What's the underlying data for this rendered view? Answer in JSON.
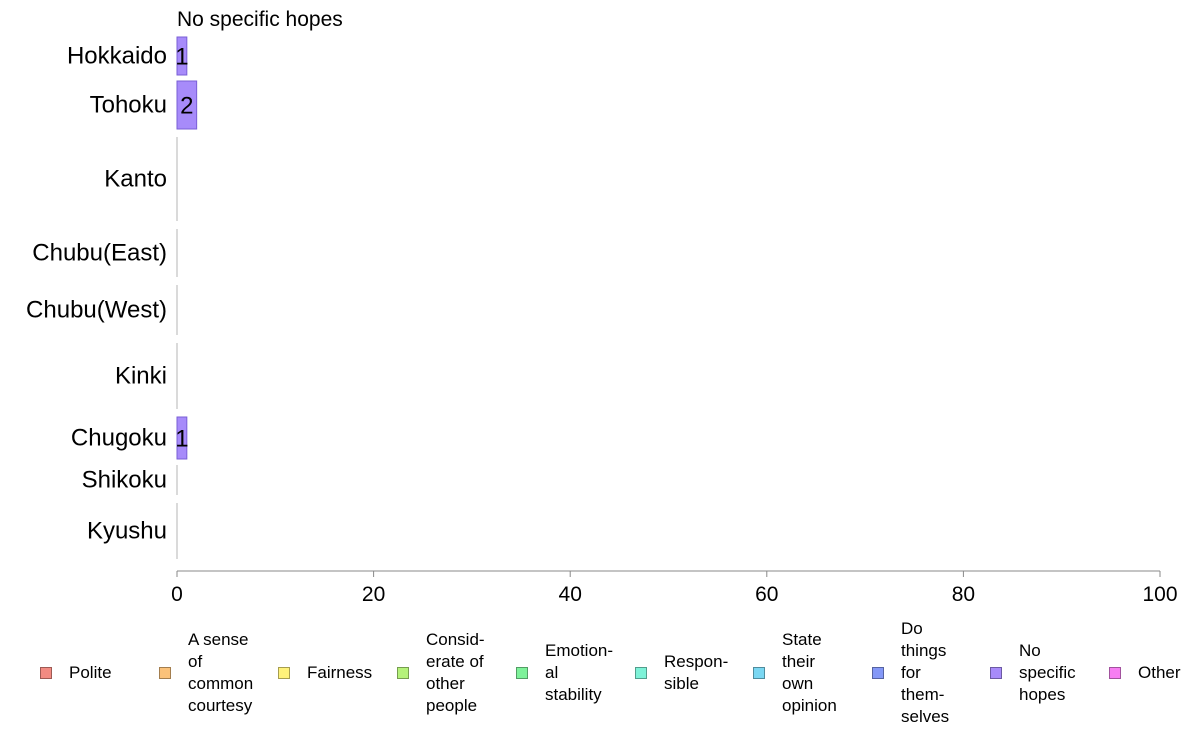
{
  "chart_data": {
    "type": "bar",
    "title": "No specific hopes",
    "categories": [
      "Hokkaido",
      "Tohoku",
      "Kanto",
      "Chubu(East)",
      "Chubu(West)",
      "Kinki",
      "Chugoku",
      "Shikoku",
      "Kyushu"
    ],
    "series": [
      {
        "name": "No specific hopes",
        "values": [
          1,
          2,
          0,
          0,
          0,
          0,
          1,
          0,
          0
        ],
        "color": "#a78bfa"
      }
    ],
    "data_labels": [
      "1",
      "2",
      "",
      "",
      "",
      "",
      "1",
      "",
      ""
    ],
    "x_ticks": [
      "0",
      "20",
      "40",
      "60",
      "80",
      "100"
    ],
    "xlim": [
      0,
      100
    ],
    "grid": false,
    "legend_position": "bottom"
  },
  "legend": [
    {
      "label": "Polite",
      "color": "#f28b82"
    },
    {
      "label": "A sense\nof\ncommon\ncourtesy",
      "color": "#fbc27a"
    },
    {
      "label": "Fairness",
      "color": "#fff27a"
    },
    {
      "label": "Consid-\nerate of\nother\npeople",
      "color": "#b5f27a"
    },
    {
      "label": "Emotion-\nal\nstability",
      "color": "#7ef29a"
    },
    {
      "label": "Respon-\nsible",
      "color": "#7ef2d8"
    },
    {
      "label": "State\ntheir\nown\nopinion",
      "color": "#7ad7f2"
    },
    {
      "label": "Do\nthings\nfor\nthem-\nselves",
      "color": "#8498f7"
    },
    {
      "label": "No\nspecific\nhopes",
      "color": "#a78bfa"
    },
    {
      "label": "Other",
      "color": "#f77ef2"
    }
  ]
}
